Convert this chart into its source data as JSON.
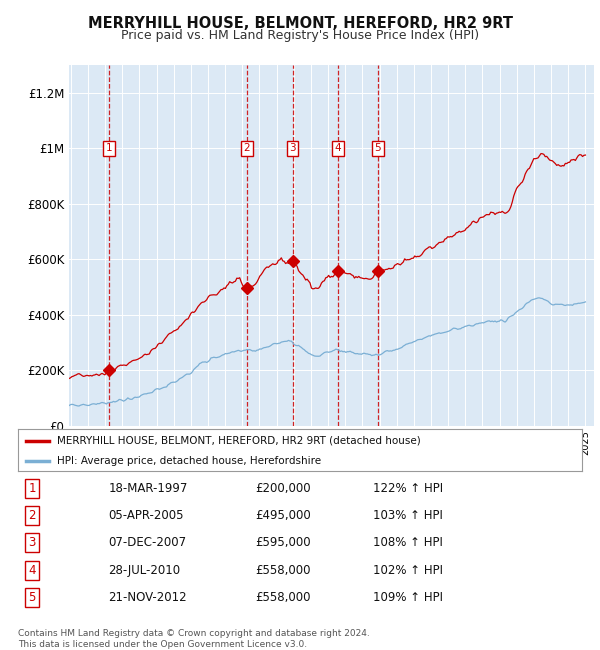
{
  "title": "MERRYHILL HOUSE, BELMONT, HEREFORD, HR2 9RT",
  "subtitle": "Price paid vs. HM Land Registry's House Price Index (HPI)",
  "sales": [
    {
      "num": 1,
      "date_x": 1997.21,
      "price": 200000
    },
    {
      "num": 2,
      "date_x": 2005.26,
      "price": 495000
    },
    {
      "num": 3,
      "date_x": 2007.93,
      "price": 595000
    },
    {
      "num": 4,
      "date_x": 2010.57,
      "price": 558000
    },
    {
      "num": 5,
      "date_x": 2012.89,
      "price": 558000
    }
  ],
  "table_rows": [
    {
      "num": 1,
      "date": "18-MAR-1997",
      "price": "£200,000",
      "hpi": "122% ↑ HPI"
    },
    {
      "num": 2,
      "date": "05-APR-2005",
      "price": "£495,000",
      "hpi": "103% ↑ HPI"
    },
    {
      "num": 3,
      "date": "07-DEC-2007",
      "price": "£595,000",
      "hpi": "108% ↑ HPI"
    },
    {
      "num": 4,
      "date": "28-JUL-2010",
      "price": "£558,000",
      "hpi": "102% ↑ HPI"
    },
    {
      "num": 5,
      "date": "21-NOV-2012",
      "price": "£558,000",
      "hpi": "109% ↑ HPI"
    }
  ],
  "legend_house": "MERRYHILL HOUSE, BELMONT, HEREFORD, HR2 9RT (detached house)",
  "legend_hpi": "HPI: Average price, detached house, Herefordshire",
  "footer": "Contains HM Land Registry data © Crown copyright and database right 2024.\nThis data is licensed under the Open Government Licence v3.0.",
  "house_color": "#cc0000",
  "hpi_color": "#7bafd4",
  "background_color": "#dce9f5",
  "ylim": [
    0,
    1300000
  ],
  "xlim_start": 1994.9,
  "xlim_end": 2025.5,
  "yticks": [
    0,
    200000,
    400000,
    600000,
    800000,
    1000000,
    1200000
  ],
  "ytick_labels": [
    "£0",
    "£200K",
    "£400K",
    "£600K",
    "£800K",
    "£1M",
    "£1.2M"
  ]
}
